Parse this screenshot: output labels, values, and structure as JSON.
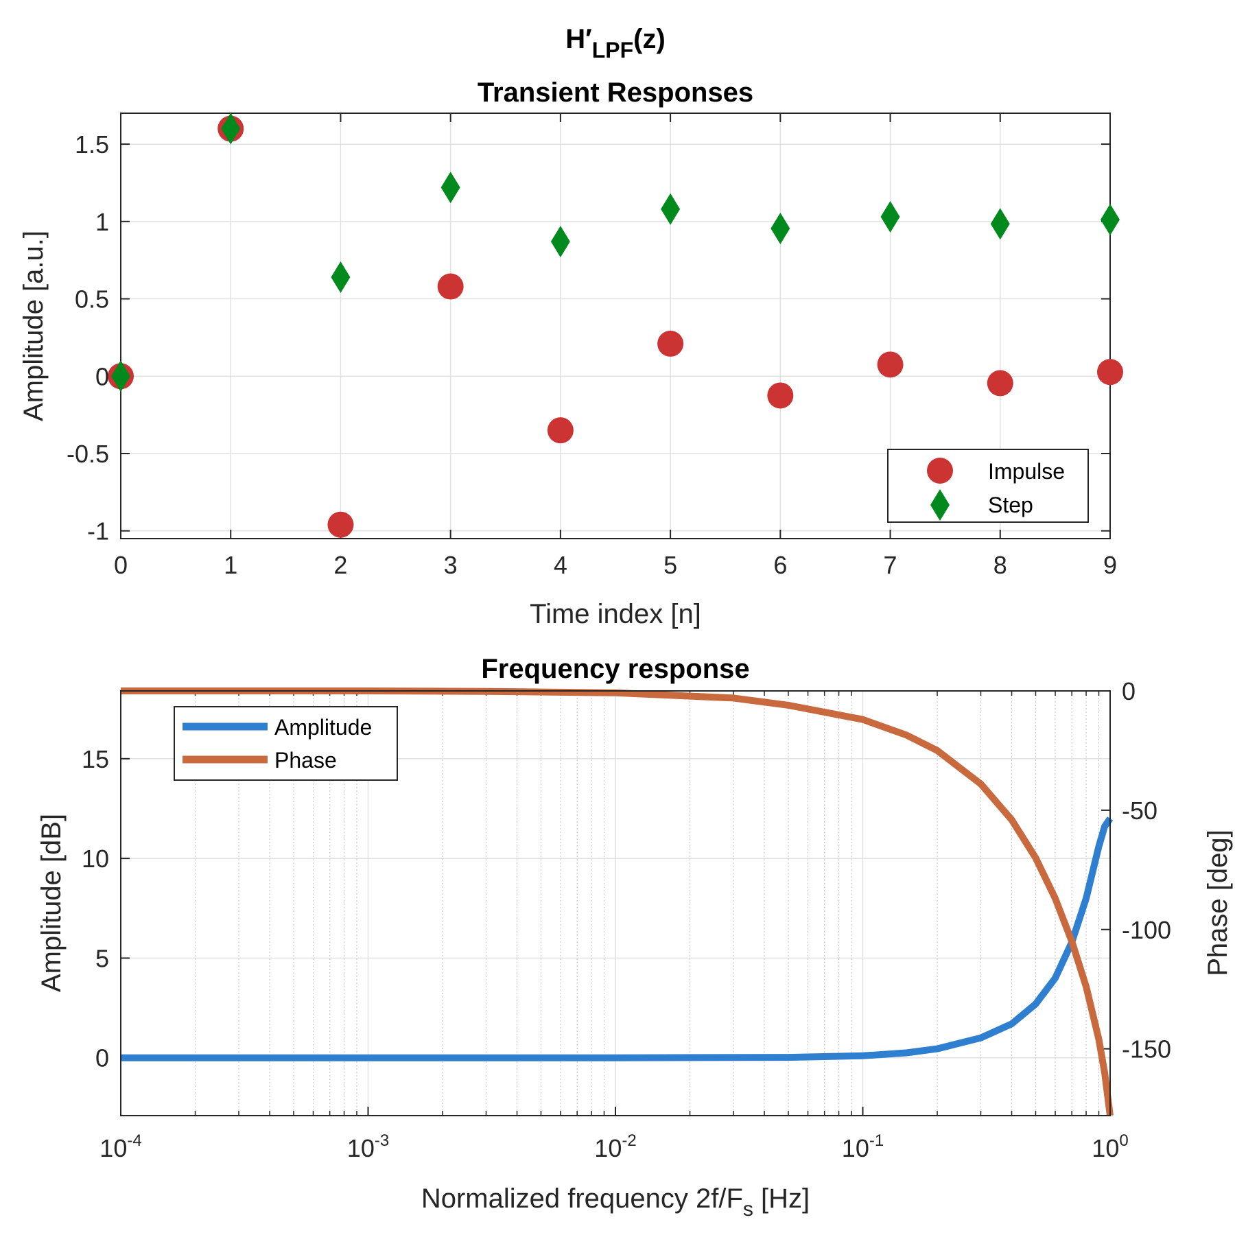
{
  "figure": {
    "suptitle_main": "H′",
    "suptitle_sub": "LPF",
    "suptitle_suffix": "(z)"
  },
  "colors": {
    "impulse": "#CC3333",
    "step": "#008A1E",
    "amplitude": "#2E7FD0",
    "phase": "#C8693E",
    "grid": "#E1E1E1",
    "axis": "#262626"
  },
  "chart_data": [
    {
      "type": "scatter",
      "title": "Transient Responses",
      "xlabel": "Time index [n]",
      "ylabel": "Amplitude [a.u.]",
      "xlim": [
        0,
        9
      ],
      "ylim": [
        -1.05,
        1.7
      ],
      "grid": true,
      "xticks": [
        0,
        1,
        2,
        3,
        4,
        5,
        6,
        7,
        8,
        9
      ],
      "xtick_labels": [
        "0",
        "1",
        "2",
        "3",
        "4",
        "5",
        "6",
        "7",
        "8",
        "9"
      ],
      "yticks": [
        -1,
        -0.5,
        0,
        0.5,
        1,
        1.5
      ],
      "ytick_labels": [
        "-1",
        "-0.5",
        "0",
        "0.5",
        "1",
        "1.5"
      ],
      "x": [
        0,
        1,
        2,
        3,
        4,
        5,
        6,
        7,
        8,
        9
      ],
      "series": [
        {
          "name": "Impulse",
          "marker": "circle",
          "values": [
            0,
            1.6,
            -0.96,
            0.58,
            -0.35,
            0.21,
            -0.125,
            0.075,
            -0.045,
            0.027
          ]
        },
        {
          "name": "Step",
          "marker": "diamond",
          "values": [
            0,
            1.6,
            0.64,
            1.22,
            0.87,
            1.08,
            0.955,
            1.03,
            0.985,
            1.012
          ]
        }
      ],
      "legend": {
        "position": "bottom-right",
        "entries": [
          "Impulse",
          "Step"
        ]
      }
    },
    {
      "type": "line",
      "title": "Frequency response",
      "xlabel_main": "Normalized frequency 2f/F",
      "xlabel_sub": "s",
      "xlabel_suffix": " [Hz]",
      "ylabel": "Amplitude [dB]",
      "y2label": "Phase [deg]",
      "xscale": "log",
      "xlim": [
        0.0001,
        1
      ],
      "ylim": [
        -2.9,
        18.4
      ],
      "y2lim": [
        -178,
        0
      ],
      "grid": true,
      "xticks": [
        0.0001,
        0.001,
        0.01,
        0.1,
        1
      ],
      "xtick_labels": [
        {
          "base": "10",
          "exp": "-4"
        },
        {
          "base": "10",
          "exp": "-3"
        },
        {
          "base": "10",
          "exp": "-2"
        },
        {
          "base": "10",
          "exp": "-1"
        },
        {
          "base": "10",
          "exp": "0"
        }
      ],
      "yticks": [
        0,
        5,
        10,
        15
      ],
      "ytick_labels": [
        "0",
        "5",
        "10",
        "15"
      ],
      "y2ticks": [
        0,
        -50,
        -100,
        -150
      ],
      "y2tick_labels": [
        "0",
        "-50",
        "-100",
        "-150"
      ],
      "series": [
        {
          "name": "Amplitude",
          "axis": "left",
          "x": [
            0.0001,
            0.001,
            0.01,
            0.05,
            0.1,
            0.15,
            0.2,
            0.3,
            0.4,
            0.5,
            0.6,
            0.7,
            0.8,
            0.9,
            0.95,
            1.0
          ],
          "values": [
            0,
            0,
            0,
            0.02,
            0.1,
            0.25,
            0.45,
            1.0,
            1.7,
            2.7,
            4.0,
            5.8,
            8.0,
            10.6,
            11.6,
            12.0
          ]
        },
        {
          "name": "Phase",
          "axis": "right",
          "x": [
            0.0001,
            0.001,
            0.003,
            0.01,
            0.03,
            0.05,
            0.1,
            0.15,
            0.2,
            0.3,
            0.4,
            0.5,
            0.6,
            0.7,
            0.8,
            0.9,
            0.95,
            1.0
          ],
          "values": [
            0,
            0,
            -0.2,
            -0.8,
            -3,
            -6,
            -12,
            -18.5,
            -25,
            -39,
            -54,
            -70,
            -87,
            -105,
            -124,
            -146,
            -160,
            -178
          ]
        }
      ],
      "legend": {
        "position": "top-left",
        "entries": [
          "Amplitude",
          "Phase"
        ]
      }
    }
  ]
}
